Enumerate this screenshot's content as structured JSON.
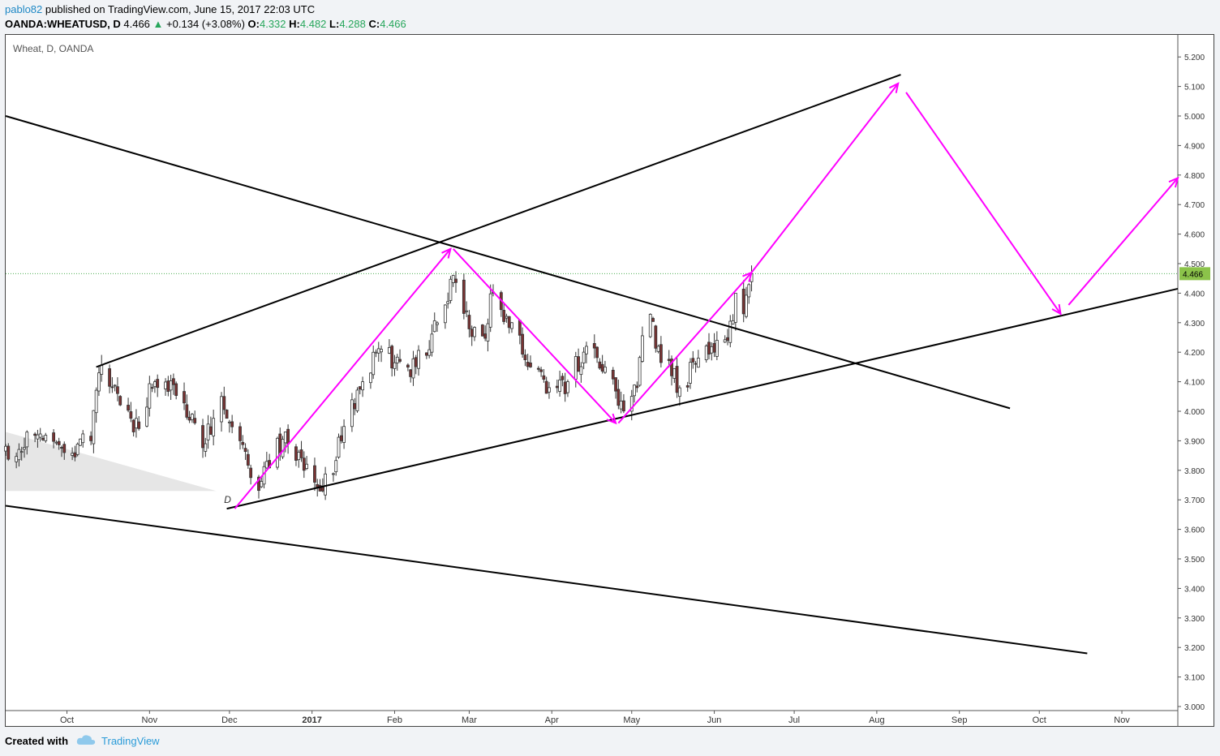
{
  "header": {
    "user": "pablo82",
    "published": "published on TradingView.com, June 15, 2017 22:03 UTC",
    "symbol": "OANDA:WHEATUSD, D",
    "last": "4.466",
    "change": "+0.134 (+3.08%)",
    "o_label": "O:",
    "o": "4.332",
    "h_label": "H:",
    "h": "4.482",
    "l_label": "L:",
    "l": "4.288",
    "c_label": "C:",
    "c": "4.466"
  },
  "footer": {
    "created_with": "Created with",
    "brand": "TradingView"
  },
  "colors": {
    "up": "#26a65b",
    "down": "#e53935",
    "arrow": "#ff00ff",
    "trendline": "#000000",
    "last_price_bg": "#8bc34a"
  },
  "chart_data": {
    "type": "candlestick",
    "title": "Wheat, D, OANDA",
    "pattern_label": "D",
    "ylim": [
      3.0,
      5.25
    ],
    "y_ticks": [
      "3.000",
      "3.100",
      "3.200",
      "3.300",
      "3.400",
      "3.500",
      "3.600",
      "3.700",
      "3.800",
      "3.900",
      "4.000",
      "4.100",
      "4.200",
      "4.300",
      "4.400",
      "4.500",
      "4.600",
      "4.700",
      "4.800",
      "4.900",
      "5.000",
      "5.100",
      "5.200"
    ],
    "x_ticks": [
      {
        "label": "Oct",
        "date": "2016-10-01"
      },
      {
        "label": "Nov",
        "date": "2016-11-01"
      },
      {
        "label": "Dec",
        "date": "2016-12-01"
      },
      {
        "label": "2017",
        "date": "2017-01-01"
      },
      {
        "label": "Feb",
        "date": "2017-02-01"
      },
      {
        "label": "Mar",
        "date": "2017-03-01"
      },
      {
        "label": "Apr",
        "date": "2017-04-01"
      },
      {
        "label": "May",
        "date": "2017-05-01"
      },
      {
        "label": "Jun",
        "date": "2017-06-01"
      },
      {
        "label": "Jul",
        "date": "2017-07-01"
      },
      {
        "label": "Aug",
        "date": "2017-08-01"
      },
      {
        "label": "Sep",
        "date": "2017-09-01"
      },
      {
        "label": "Oct",
        "date": "2017-10-01"
      },
      {
        "label": "Nov",
        "date": "2017-11-01"
      }
    ],
    "x_range": [
      "2016-09-08",
      "2017-11-22"
    ],
    "last_price": "4.466",
    "closes": [
      {
        "date": "2016-09-08",
        "close": 3.86
      },
      {
        "date": "2016-09-20",
        "close": 3.92
      },
      {
        "date": "2016-09-30",
        "close": 3.86
      },
      {
        "date": "2016-10-10",
        "close": 3.9
      },
      {
        "date": "2016-10-13",
        "close": 4.13
      },
      {
        "date": "2016-10-20",
        "close": 4.06
      },
      {
        "date": "2016-10-26",
        "close": 3.93
      },
      {
        "date": "2016-11-03",
        "close": 4.1
      },
      {
        "date": "2016-11-10",
        "close": 4.09
      },
      {
        "date": "2016-11-17",
        "close": 3.99
      },
      {
        "date": "2016-11-22",
        "close": 3.89
      },
      {
        "date": "2016-11-28",
        "close": 4.05
      },
      {
        "date": "2016-12-05",
        "close": 3.9
      },
      {
        "date": "2016-12-10",
        "close": 3.72
      },
      {
        "date": "2016-12-17",
        "close": 3.85
      },
      {
        "date": "2016-12-22",
        "close": 3.93
      },
      {
        "date": "2016-12-29",
        "close": 3.8
      },
      {
        "date": "2017-01-05",
        "close": 3.73
      },
      {
        "date": "2017-01-12",
        "close": 3.9
      },
      {
        "date": "2017-01-20",
        "close": 4.1
      },
      {
        "date": "2017-01-27",
        "close": 4.21
      },
      {
        "date": "2017-02-04",
        "close": 4.13
      },
      {
        "date": "2017-02-12",
        "close": 4.19
      },
      {
        "date": "2017-02-20",
        "close": 4.36
      },
      {
        "date": "2017-02-23",
        "close": 4.46
      },
      {
        "date": "2017-02-28",
        "close": 4.34
      },
      {
        "date": "2017-03-05",
        "close": 4.2
      },
      {
        "date": "2017-03-10",
        "close": 4.4
      },
      {
        "date": "2017-03-17",
        "close": 4.3
      },
      {
        "date": "2017-03-24",
        "close": 4.15
      },
      {
        "date": "2017-03-31",
        "close": 4.08
      },
      {
        "date": "2017-04-07",
        "close": 4.1
      },
      {
        "date": "2017-04-14",
        "close": 4.22
      },
      {
        "date": "2017-04-21",
        "close": 4.15
      },
      {
        "date": "2017-04-26",
        "close": 4.02
      },
      {
        "date": "2017-04-29",
        "close": 3.97
      },
      {
        "date": "2017-05-03",
        "close": 4.08
      },
      {
        "date": "2017-05-06",
        "close": 4.35
      },
      {
        "date": "2017-05-11",
        "close": 4.22
      },
      {
        "date": "2017-05-16",
        "close": 4.12
      },
      {
        "date": "2017-05-20",
        "close": 4.08
      },
      {
        "date": "2017-05-26",
        "close": 4.18
      },
      {
        "date": "2017-06-01",
        "close": 4.2
      },
      {
        "date": "2017-06-06",
        "close": 4.24
      },
      {
        "date": "2017-06-09",
        "close": 4.4
      },
      {
        "date": "2017-06-12",
        "close": 4.33
      },
      {
        "date": "2017-06-15",
        "close": 4.466
      }
    ],
    "trendlines": [
      {
        "name": "upper-channel",
        "from": {
          "date": "2016-10-12",
          "price": 4.15
        },
        "to": {
          "date": "2017-08-10",
          "price": 5.14
        }
      },
      {
        "name": "lower-channel",
        "from": {
          "date": "2016-11-30",
          "price": 3.67
        },
        "to": {
          "date": "2017-11-22",
          "price": 4.415
        }
      },
      {
        "name": "descending-resistance",
        "from": {
          "date": "2016-09-08",
          "price": 5.0
        },
        "to": {
          "date": "2017-09-20",
          "price": 4.01
        }
      },
      {
        "name": "lower-descending",
        "from": {
          "date": "2016-09-08",
          "price": 3.68
        },
        "to": {
          "date": "2017-10-19",
          "price": 3.18
        }
      }
    ],
    "projection_arrows": [
      {
        "from": {
          "date": "2016-12-03",
          "price": 3.67
        },
        "to": {
          "date": "2017-02-22",
          "price": 4.55
        }
      },
      {
        "from": {
          "date": "2017-02-23",
          "price": 4.55
        },
        "to": {
          "date": "2017-04-25",
          "price": 3.96
        }
      },
      {
        "from": {
          "date": "2017-04-26",
          "price": 3.96
        },
        "to": {
          "date": "2017-06-15",
          "price": 4.47
        }
      },
      {
        "from": {
          "date": "2017-06-15",
          "price": 4.47
        },
        "to": {
          "date": "2017-08-09",
          "price": 5.11
        }
      },
      {
        "from": {
          "date": "2017-08-12",
          "price": 5.08
        },
        "to": {
          "date": "2017-10-09",
          "price": 4.33
        }
      },
      {
        "from": {
          "date": "2017-10-12",
          "price": 4.36
        },
        "to": {
          "date": "2017-11-22",
          "price": 4.79
        }
      }
    ]
  }
}
